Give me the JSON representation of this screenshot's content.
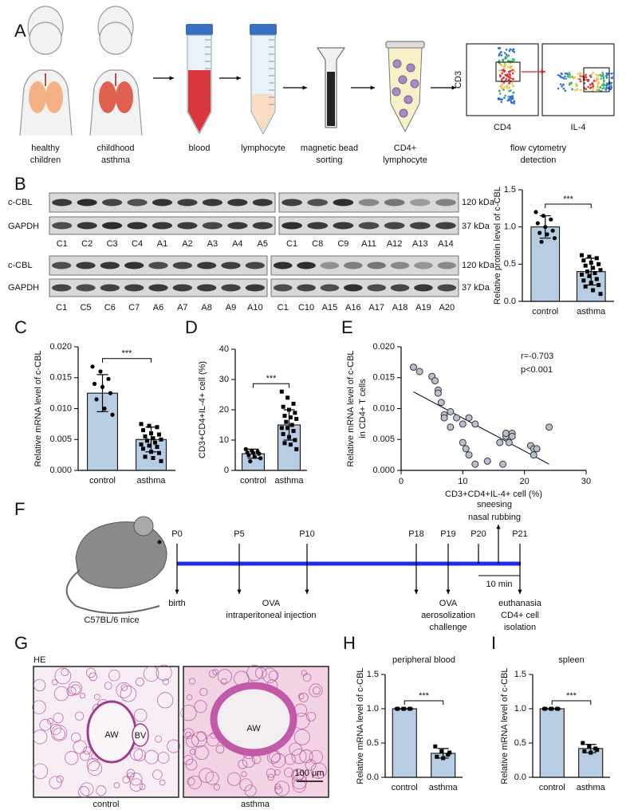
{
  "panel_labels": [
    "A",
    "B",
    "C",
    "D",
    "E",
    "F",
    "G",
    "H",
    "I"
  ],
  "panel_a": {
    "healthy": [
      "healthy",
      "children"
    ],
    "asthma": [
      "childhood",
      "asthma"
    ],
    "blood": "blood",
    "lymphocyte": "lymphocyte",
    "sorting": [
      "magnetic bead",
      "sorting"
    ],
    "cd4": [
      "CD4+",
      "lymphocyte"
    ],
    "flow": [
      "flow cytometry",
      "detection"
    ],
    "flow_axes": {
      "y": "CD3",
      "x1": "CD4",
      "x2": "IL-4"
    }
  },
  "blots": {
    "row_labels": [
      "c-CBL",
      "GAPDH"
    ],
    "sizes": [
      "120 kDa",
      "37 kDa"
    ],
    "lanes": [
      [
        "C1",
        "C2",
        "C3",
        "C4",
        "A1",
        "A2",
        "A3",
        "A4",
        "A5"
      ],
      [
        "C1",
        "C8",
        "C9",
        "A11",
        "A12",
        "A13",
        "A14"
      ],
      [
        "C1",
        "C5",
        "C6",
        "C7",
        "A6",
        "A7",
        "A8",
        "A9",
        "A10"
      ],
      [
        "C1",
        "C10",
        "A15",
        "A16",
        "A17",
        "A18",
        "A19",
        "A20"
      ]
    ]
  },
  "panel_f": {
    "mouse": "C57BL/6 mice",
    "timepoints": [
      "P0",
      "P5",
      "P10",
      "P18",
      "P19",
      "P20",
      "P21"
    ],
    "birth": "birth",
    "injection": [
      "OVA",
      "intraperitoneal injection"
    ],
    "challenge": [
      "OVA",
      "aerosolization",
      "challenge"
    ],
    "end": [
      "euthanasia",
      "CD4+ cell",
      "isolation"
    ],
    "symptoms": [
      "sneesing",
      "nasal rubbing"
    ],
    "interval": "10 min"
  },
  "panel_g": {
    "stain": "HE",
    "airway": "AW",
    "vessel": "BV",
    "scale": "100 μm",
    "labels": [
      "control",
      "asthma"
    ]
  },
  "chart_data": [
    {
      "type": "bar",
      "y_label": "Relative protein level of c-CBL",
      "categories": [
        "control",
        "asthma"
      ],
      "values": [
        1.0,
        0.4
      ],
      "errors": [
        0.15,
        0.18
      ],
      "points": [
        [
          1.2,
          1.15,
          1.1,
          1.05,
          1.0,
          0.95,
          0.92,
          0.9,
          0.85,
          0.8
        ],
        [
          0.62,
          0.6,
          0.58,
          0.55,
          0.52,
          0.5,
          0.48,
          0.45,
          0.42,
          0.4,
          0.38,
          0.36,
          0.34,
          0.3,
          0.28,
          0.25,
          0.22,
          0.2,
          0.15,
          0.1
        ]
      ],
      "significance": "***",
      "color": "#b7cde4",
      "ylim": [
        0,
        1.5
      ],
      "yticks": [
        {
          "value": 0,
          "label": "0.0"
        },
        {
          "value": 0.5,
          "label": "0.5"
        },
        {
          "value": 1,
          "label": "1.0"
        },
        {
          "value": 1.5,
          "label": "1.5"
        }
      ]
    },
    {
      "type": "bar",
      "y_label": "Relative mRNA level of c-CBL",
      "categories": [
        "control",
        "asthma"
      ],
      "values": [
        0.0125,
        0.005
      ],
      "errors": [
        0.003,
        0.002
      ],
      "points": [
        [
          0.0168,
          0.016,
          0.0148,
          0.014,
          0.0135,
          0.0125,
          0.0115,
          0.01,
          0.009
        ],
        [
          0.0075,
          0.0072,
          0.007,
          0.0065,
          0.006,
          0.0058,
          0.0055,
          0.0052,
          0.005,
          0.0048,
          0.0045,
          0.0042,
          0.004,
          0.0038,
          0.0035,
          0.003,
          0.0028,
          0.0022,
          0.002,
          0.0015
        ]
      ],
      "significance": "***",
      "color": "#b7cde4",
      "ylim": [
        0,
        0.02
      ],
      "yticks": [
        {
          "value": 0,
          "label": "0.000"
        },
        {
          "value": 0.005,
          "label": "0.005"
        },
        {
          "value": 0.01,
          "label": "0.010"
        },
        {
          "value": 0.015,
          "label": "0.015"
        },
        {
          "value": 0.02,
          "label": "0.020"
        }
      ]
    },
    {
      "type": "bar",
      "y_label": "CD3+CD4+IL-4+ cell (%)",
      "categories": [
        "control",
        "asthma"
      ],
      "values": [
        5.5,
        15
      ],
      "errors": [
        1.5,
        5
      ],
      "points": [
        [
          7,
          6.5,
          6.2,
          6,
          5.8,
          5.5,
          5,
          4.5,
          4,
          3
        ],
        [
          26,
          24,
          22,
          21,
          20,
          19,
          18,
          17.5,
          17,
          16,
          15,
          14,
          14,
          13,
          12,
          11,
          10,
          9,
          8.5,
          7
        ]
      ],
      "significance": "***",
      "color": "#b7cde4",
      "ylim": [
        0,
        40
      ],
      "yticks": [
        0,
        10,
        20,
        30,
        40
      ]
    },
    {
      "type": "scatter",
      "y_label": [
        "Relative mRNA level of c-CBL",
        "in CD4+ T cells"
      ],
      "x_label": "CD3+CD4+IL-4+ cell (%)",
      "x": [
        2,
        3,
        5,
        5.5,
        6,
        6,
        6.5,
        7,
        7,
        8,
        9,
        10,
        10,
        10.5,
        11,
        11,
        12,
        12,
        16,
        17,
        17,
        17.5,
        18,
        18,
        16.5,
        21,
        21.5,
        21.5,
        22,
        24,
        14,
        8
      ],
      "y": [
        0.0167,
        0.016,
        0.0152,
        0.0145,
        0.013,
        0.0125,
        0.011,
        0.009,
        0.0085,
        0.0095,
        0.0085,
        0.0075,
        0.0045,
        0.0035,
        0.0025,
        0.0085,
        0.0075,
        0.001,
        0.0045,
        0.0055,
        0.006,
        0.0045,
        0.006,
        0.0055,
        0.001,
        0.004,
        0.0035,
        0.0025,
        0.0035,
        0.007,
        0.0015,
        0.007
      ],
      "annotations": [
        "r=-0.703",
        "p<0.001"
      ],
      "color": "#b8bfd0",
      "xlim": [
        0,
        30
      ],
      "xticks": [
        0,
        10,
        20,
        30
      ],
      "ylim": [
        0,
        0.02
      ],
      "yticks": [
        {
          "value": 0,
          "label": "0.000"
        },
        {
          "value": 0.005,
          "label": "0.005"
        },
        {
          "value": 0.01,
          "label": "0.010"
        },
        {
          "value": 0.015,
          "label": "0.015"
        },
        {
          "value": 0.02,
          "label": "0.020"
        }
      ]
    },
    {
      "type": "bar",
      "title": "peripheral blood",
      "y_label": "Relative mRNA level of c-CBL",
      "categories": [
        "control",
        "asthma"
      ],
      "values": [
        1.0,
        0.35
      ],
      "errors": [
        0,
        0.07
      ],
      "points": [
        [
          1,
          1,
          1,
          1,
          1,
          1
        ],
        [
          0.45,
          0.38,
          0.33,
          0.3,
          0.28,
          0.36
        ]
      ],
      "significance": "***",
      "color": "#b7cde4",
      "ylim": [
        0,
        1.5
      ],
      "yticks": [
        {
          "value": 0,
          "label": "0.0"
        },
        {
          "value": 0.5,
          "label": "0.5"
        },
        {
          "value": 1,
          "label": "1.0"
        },
        {
          "value": 1.5,
          "label": "1.5"
        }
      ]
    },
    {
      "type": "bar",
      "title": "spleen",
      "y_label": "Relative mRNA level of c-CBL",
      "categories": [
        "control",
        "asthma"
      ],
      "values": [
        1.0,
        0.42
      ],
      "errors": [
        0,
        0.06
      ],
      "points": [
        [
          1,
          1,
          1,
          1,
          1,
          1
        ],
        [
          0.5,
          0.45,
          0.42,
          0.38,
          0.36,
          0.4
        ]
      ],
      "significance": "***",
      "color": "#b7cde4",
      "ylim": [
        0,
        1.5
      ],
      "yticks": [
        {
          "value": 0,
          "label": "0.0"
        },
        {
          "value": 0.5,
          "label": "0.5"
        },
        {
          "value": 1,
          "label": "1.0"
        },
        {
          "value": 1.5,
          "label": "1.5"
        }
      ]
    }
  ]
}
